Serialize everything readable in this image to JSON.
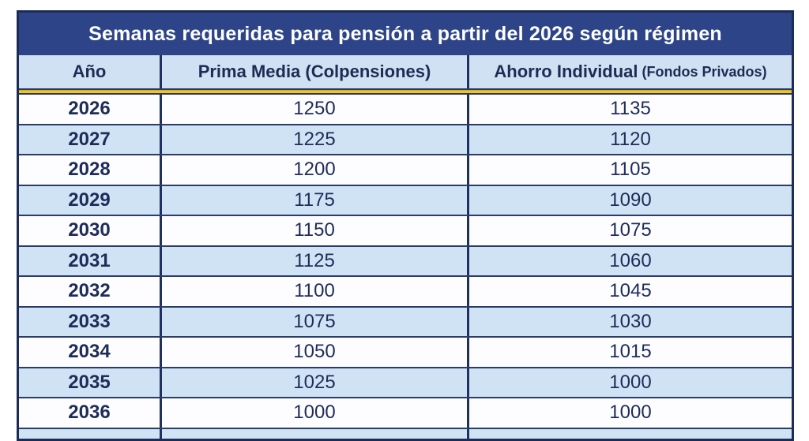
{
  "table": {
    "title": "Semanas requeridas para pensión a partir del 2026 según régimen",
    "headers": {
      "year": "Año",
      "prima_media": "Prima Media (Colpensiones)",
      "ahorro_main": "Ahorro Individual",
      "ahorro_sub": "(Fondos Privados)"
    },
    "colors": {
      "title_bg": "#2d4588",
      "title_text": "#ffffff",
      "header_bg": "#cfe1f2",
      "row_bg": "#fdfdff",
      "alt_row_bg": "#cfe3f5",
      "border": "#1d2c55",
      "accent_yellow": "#f6c51b",
      "text": "#1e2c58"
    }
  },
  "chart_data": {
    "type": "table",
    "title": "Semanas requeridas para pensión a partir del 2026 según régimen",
    "columns": [
      "Año",
      "Prima Media (Colpensiones)",
      "Ahorro Individual (Fondos Privados)"
    ],
    "rows": [
      {
        "year": "2026",
        "prima_media": "1250",
        "ahorro_individual": "1135"
      },
      {
        "year": "2027",
        "prima_media": "1225",
        "ahorro_individual": "1120"
      },
      {
        "year": "2028",
        "prima_media": "1200",
        "ahorro_individual": "1105"
      },
      {
        "year": "2029",
        "prima_media": "1175",
        "ahorro_individual": "1090"
      },
      {
        "year": "2030",
        "prima_media": "1150",
        "ahorro_individual": "1075"
      },
      {
        "year": "2031",
        "prima_media": "1125",
        "ahorro_individual": "1060"
      },
      {
        "year": "2032",
        "prima_media": "1100",
        "ahorro_individual": "1045"
      },
      {
        "year": "2033",
        "prima_media": "1075",
        "ahorro_individual": "1030"
      },
      {
        "year": "2034",
        "prima_media": "1050",
        "ahorro_individual": "1015"
      },
      {
        "year": "2035",
        "prima_media": "1025",
        "ahorro_individual": "1000"
      },
      {
        "year": "2036",
        "prima_media": "1000",
        "ahorro_individual": "1000"
      }
    ]
  }
}
